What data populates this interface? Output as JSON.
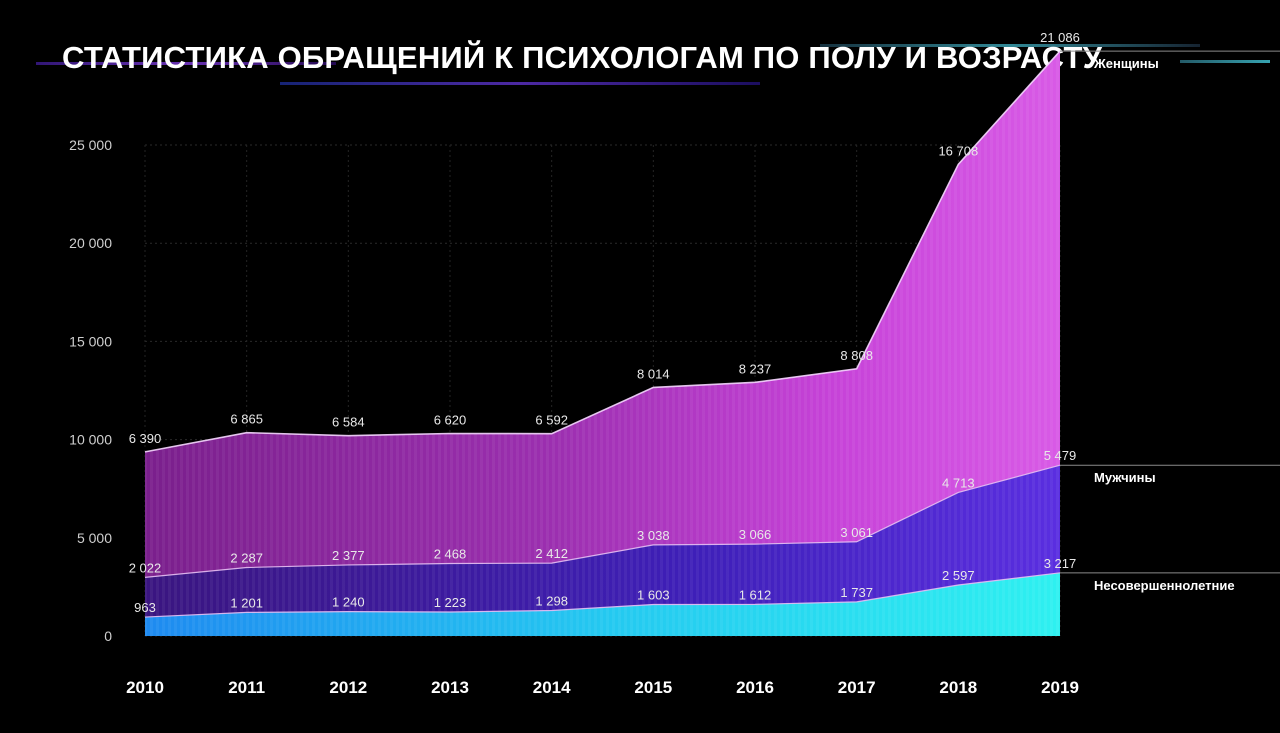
{
  "title": "СТАТИСТИКА ОБРАЩЕНИЙ К ПСИХОЛОГАМ ПО ПОЛУ И ВОЗРАСТУ",
  "colors": {
    "background": "#000000",
    "women": "#c640d8",
    "men": "#3b1fc8",
    "minors": "#28e0ee",
    "line": "#f0c8f8"
  },
  "chart_data": {
    "type": "area",
    "stacked": true,
    "x": [
      "2010",
      "2011",
      "2012",
      "2013",
      "2014",
      "2015",
      "2016",
      "2017",
      "2018",
      "2019"
    ],
    "ylim": [
      0,
      25000
    ],
    "yticks": [
      0,
      5000,
      10000,
      15000,
      20000,
      25000
    ],
    "ytick_labels": [
      "0",
      "5 000",
      "10 000",
      "15 000",
      "20 000",
      "25 000"
    ],
    "grid": true,
    "series": [
      {
        "name": "Несовершеннолетние",
        "values": [
          963,
          1201,
          1240,
          1223,
          1298,
          1603,
          1612,
          1737,
          2597,
          3217
        ],
        "labels": [
          "963",
          "1 201",
          "1 240",
          "1 223",
          "1 298",
          "1 603",
          "1 612",
          "1 737",
          "2 597",
          "3 217"
        ]
      },
      {
        "name": "Мужчины",
        "values": [
          2022,
          2287,
          2377,
          2468,
          2412,
          3038,
          3066,
          3061,
          4713,
          5479
        ],
        "labels": [
          "2 022",
          "2 287",
          "2 377",
          "2 468",
          "2 412",
          "3 038",
          "3 066",
          "3 061",
          "4 713",
          "5 479"
        ]
      },
      {
        "name": "Женщины",
        "values": [
          6390,
          6865,
          6584,
          6620,
          6592,
          8014,
          8237,
          8808,
          16708,
          21086
        ],
        "labels": [
          "6 390",
          "6 865",
          "6 584",
          "6 620",
          "6 592",
          "8 014",
          "8 237",
          "8 808",
          "16 708",
          "21 086"
        ]
      }
    ],
    "legend": "right"
  }
}
